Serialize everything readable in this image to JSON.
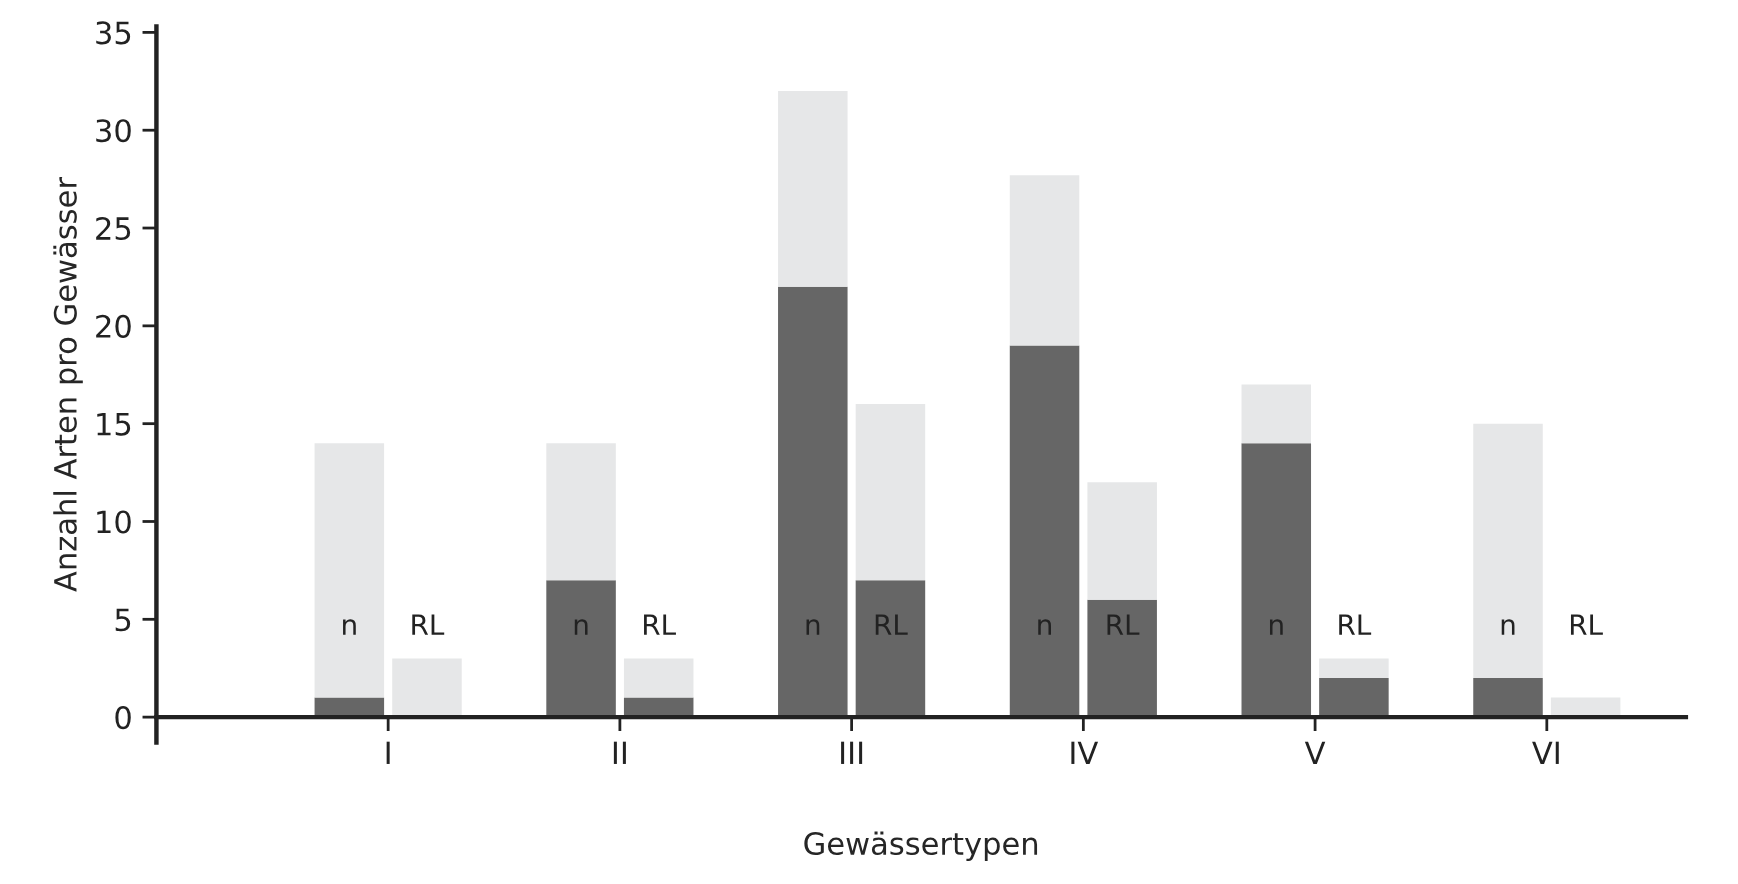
{
  "chart_data": {
    "type": "bar",
    "stacked": true,
    "xlabel": "Gewässertypen",
    "ylabel": "Anzahl Arten pro Gewässer",
    "categories": [
      "n",
      "RL",
      "n",
      "RL",
      "n",
      "RL",
      "n",
      "RL",
      "n",
      "RL",
      "n",
      "RL"
    ],
    "series": [
      {
        "color": "#666666",
        "values": [
          1,
          0,
          7,
          1,
          22,
          7,
          19,
          6,
          14,
          2,
          2,
          0
        ]
      },
      {
        "color": "#e6e7e8",
        "values": [
          13,
          3,
          7,
          2,
          10,
          9,
          8.7,
          6,
          3,
          1,
          13,
          1
        ]
      }
    ],
    "annotations": [
      "I",
      "II",
      "III",
      "IV",
      "V",
      "VI"
    ],
    "ylim": [
      -1.3,
      35.3
    ],
    "yticks": [
      0,
      5,
      10,
      15,
      20,
      25,
      30,
      35
    ]
  }
}
